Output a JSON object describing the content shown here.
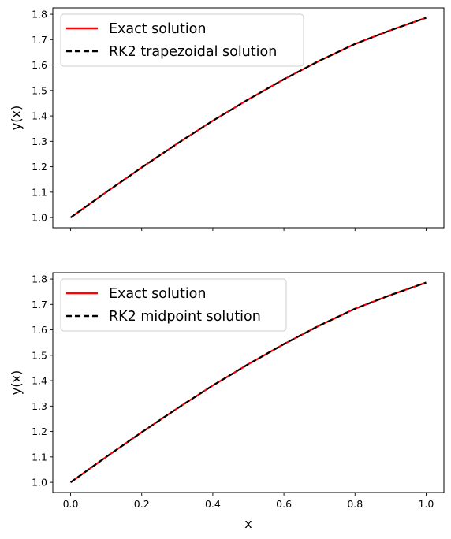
{
  "chart_data": [
    {
      "type": "line",
      "xlabel": "",
      "ylabel": "y(x)",
      "xlim": [
        -0.05,
        1.05
      ],
      "ylim": [
        0.96,
        1.825
      ],
      "x_ticks": [
        0.0,
        0.2,
        0.4,
        0.6,
        0.8,
        1.0
      ],
      "x_tick_labels_visible": false,
      "y_ticks": [
        1.0,
        1.1,
        1.2,
        1.3,
        1.4,
        1.5,
        1.6,
        1.7,
        1.8
      ],
      "y_tick_labels": [
        "1.0",
        "1.1",
        "1.2",
        "1.3",
        "1.4",
        "1.5",
        "1.6",
        "1.7",
        "1.8"
      ],
      "grid": false,
      "legend_position": "upper-left",
      "x": [
        0.0,
        0.1,
        0.2,
        0.3,
        0.4,
        0.5,
        0.6,
        0.7,
        0.8,
        0.9,
        1.0
      ],
      "series": [
        {
          "name": "Exact solution",
          "color": "#ff0000",
          "style": "solid",
          "values": [
            1.0,
            1.1,
            1.197,
            1.291,
            1.381,
            1.465,
            1.544,
            1.617,
            1.683,
            1.737,
            1.786
          ]
        },
        {
          "name": "RK2 trapezoidal solution",
          "color": "#000000",
          "style": "dashed",
          "values": [
            1.0,
            1.1,
            1.197,
            1.291,
            1.381,
            1.465,
            1.544,
            1.617,
            1.683,
            1.737,
            1.786
          ]
        }
      ]
    },
    {
      "type": "line",
      "xlabel": "x",
      "ylabel": "y(x)",
      "xlim": [
        -0.05,
        1.05
      ],
      "ylim": [
        0.96,
        1.825
      ],
      "x_ticks": [
        0.0,
        0.2,
        0.4,
        0.6,
        0.8,
        1.0
      ],
      "x_tick_labels": [
        "0.0",
        "0.2",
        "0.4",
        "0.6",
        "0.8",
        "1.0"
      ],
      "x_tick_labels_visible": true,
      "y_ticks": [
        1.0,
        1.1,
        1.2,
        1.3,
        1.4,
        1.5,
        1.6,
        1.7,
        1.8
      ],
      "y_tick_labels": [
        "1.0",
        "1.1",
        "1.2",
        "1.3",
        "1.4",
        "1.5",
        "1.6",
        "1.7",
        "1.8"
      ],
      "grid": false,
      "legend_position": "upper-left",
      "x": [
        0.0,
        0.1,
        0.2,
        0.3,
        0.4,
        0.5,
        0.6,
        0.7,
        0.8,
        0.9,
        1.0
      ],
      "series": [
        {
          "name": "Exact solution",
          "color": "#ff0000",
          "style": "solid",
          "values": [
            1.0,
            1.1,
            1.197,
            1.291,
            1.381,
            1.465,
            1.544,
            1.617,
            1.683,
            1.737,
            1.786
          ]
        },
        {
          "name": "RK2 midpoint solution",
          "color": "#000000",
          "style": "dashed",
          "values": [
            1.0,
            1.1,
            1.197,
            1.291,
            1.381,
            1.465,
            1.544,
            1.617,
            1.683,
            1.737,
            1.786
          ]
        }
      ]
    }
  ]
}
